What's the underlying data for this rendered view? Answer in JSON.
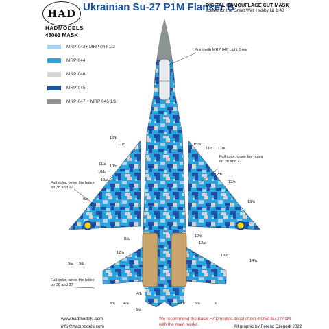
{
  "header": {
    "logo": "HAD",
    "brand": "HADMODELS",
    "product_code": "48001 MASK",
    "title": "Ukrainian Su-27 P1M Flanker B",
    "subtitle": "DIGITAL CAMOUFLAGE CUT MASK",
    "scale_note": "scaled for the Great Wall Hobby kit 1:48"
  },
  "legend": [
    {
      "color": "#a9d4f3",
      "label": "MRP-043+ MRP 044 1/2"
    },
    {
      "color": "#29a4de",
      "label": "MRP-044"
    },
    {
      "color": "#d3d3d6",
      "label": "MRP-046"
    },
    {
      "color": "#1f4fa2",
      "label": "MRP-045"
    },
    {
      "color": "#8d9294",
      "label": "MRP-047 + MRP 046 1/1"
    }
  ],
  "notes": {
    "nose_point": "Point with MRP 046 Light Grey",
    "full_color_right": "Full color, cover the holes on 38 and 27",
    "full_color_left": "Full color, cover the holes on 38 and 27",
    "full_color_bottom": "Full color, cover the holes on 38 and 27"
  },
  "callouts": [
    "15/b",
    "11/c",
    "15/a",
    "11/d",
    "11/e",
    "11/a",
    "10/c",
    "12/b",
    "10/b",
    "12/e",
    "10/a",
    "9/c",
    "13/a",
    "9/a",
    "12/d",
    "12/c",
    "8/a",
    "9/b",
    "12/a",
    "14/a",
    "13/c",
    "3/a",
    "4/a",
    "4/b",
    "7",
    "8/b",
    "5/a",
    "6",
    "8/a"
  ],
  "footer": {
    "website": "www.hadmodels.com",
    "email": "info@hadmodels.com",
    "recommendation": "We recommend the Basic HADmodels decal sheet 48257 Su-27P1M with the main marks.",
    "credit": "All graphic by Ferenc Szegedi 2022"
  }
}
